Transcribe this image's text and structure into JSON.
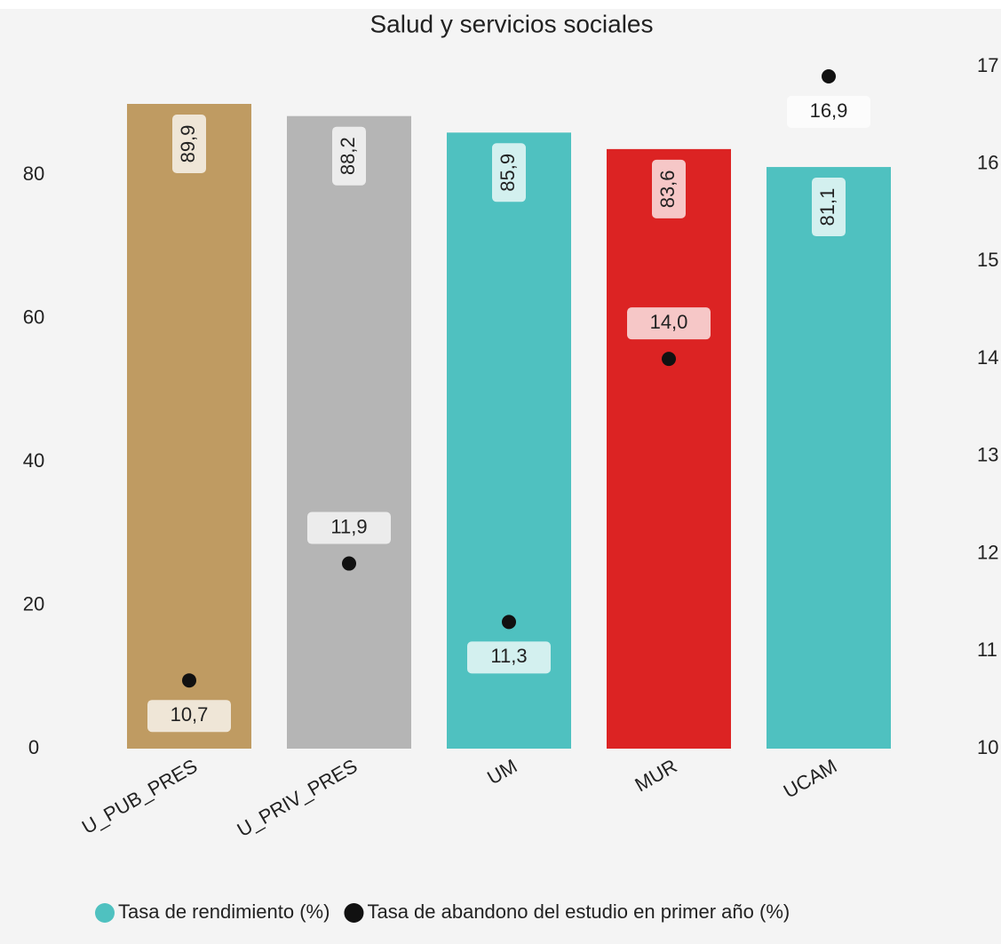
{
  "chart_data": {
    "type": "bar",
    "title": "Salud y servicios sociales",
    "categories": [
      "U_PUB_PRES",
      "U_PRIV_PRES",
      "UM",
      "MUR",
      "UCAM"
    ],
    "series": [
      {
        "name": "Tasa de rendimiento (%)",
        "type": "bar",
        "color": "#4fc1c0",
        "colors": [
          "#bf9b62",
          "#b5b5b5",
          "#4fc1c0",
          "#dc2323",
          "#4fc1c0"
        ],
        "values": [
          89.9,
          88.2,
          85.9,
          83.6,
          81.1
        ],
        "value_labels": [
          "89,9",
          "88,2",
          "85,9",
          "83,6",
          "81,1"
        ]
      },
      {
        "name": "Tasa de abandono del estudio en primer año (%)",
        "type": "scatter",
        "axis": "y2",
        "color": "#111111",
        "values": [
          10.7,
          11.9,
          11.3,
          14.0,
          16.9
        ],
        "value_labels": [
          "10,7",
          "11,9",
          "11,3",
          "14,0",
          "16,9"
        ]
      }
    ],
    "ylim": [
      0,
      95.1
    ],
    "yticks": [
      0,
      20,
      40,
      60,
      80
    ],
    "y2lim": [
      10,
      17
    ],
    "y2ticks": [
      10,
      11,
      12,
      13,
      14,
      15,
      16,
      17
    ],
    "legend": "bottom"
  }
}
